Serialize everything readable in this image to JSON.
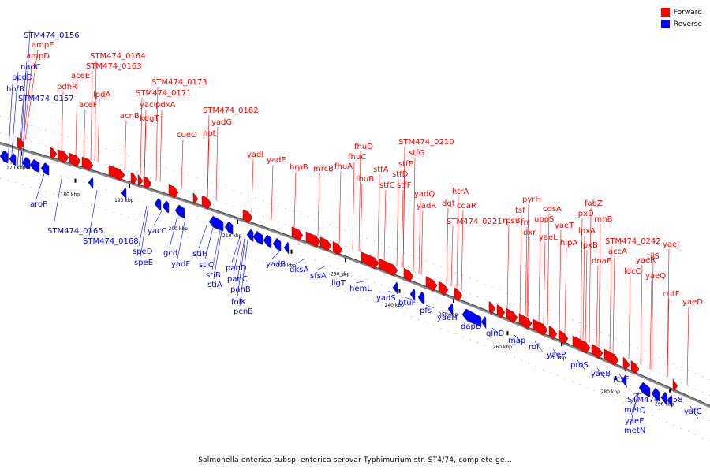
{
  "legend": {
    "forward": {
      "label": "Forward",
      "color": "#ff0000"
    },
    "reverse": {
      "label": "Reverse",
      "color": "#0000ff"
    }
  },
  "caption": "Salmonella enterica subsp. enterica serovar Typhimurium str. ST4/74, complete ge...",
  "scale_labels": [
    "170 kbp",
    "180 kbp",
    "190 kbp",
    "200 kbp",
    "210 kbp",
    "220 kbp",
    "230 kbp",
    "240 kbp",
    "250 kbp",
    "260 kbp",
    "270 kbp",
    "280 kbp",
    "290 kbp"
  ],
  "forward_genes": [
    "STM474_0156",
    "ampE",
    "ampD",
    "nadC",
    "ppdD",
    "hofB",
    "STM474_0157",
    "aceE",
    "pdhR",
    "aceF",
    "STM474_0164",
    "STM474_0163",
    "lpdA",
    "acnB",
    "STM474_0173",
    "STM474_0171",
    "yacI",
    "pdxA",
    "kdgT",
    "STM474_0182",
    "yadG",
    "hpt",
    "cueO",
    "yadI",
    "yadE",
    "hrpB",
    "mrcB",
    "fhuA",
    "fhuD",
    "fhuC",
    "fhuB",
    "STM474_0210",
    "stfG",
    "stfE",
    "stfA",
    "stfD",
    "stfC",
    "stfF",
    "yadQ",
    "yadR",
    "htrA",
    "dgt",
    "cdaR",
    "STM474_0221",
    "pyrH",
    "tsf",
    "rpsB",
    "frr",
    "dxr",
    "cdsA",
    "uppS",
    "yaeL",
    "yaeT",
    "hlpA",
    "fabZ",
    "lpxD",
    "rnhB",
    "lpxA",
    "lpxB",
    "dnaE",
    "STM474_0242",
    "accA",
    "yaeJ",
    "tilS",
    "yaeR",
    "ldcC",
    "yaeQ",
    "cutF",
    "yaeD"
  ],
  "reverse_genes": [
    "aroP",
    "STM474_0165",
    "STM474_0168",
    "yacC",
    "speD",
    "speE",
    "gcd",
    "yadF",
    "stiH",
    "stiC",
    "stiB",
    "stiA",
    "panD",
    "panC",
    "panB",
    "folK",
    "pcnB",
    "yadB",
    "dksA",
    "sfsA",
    "ligT",
    "hemL",
    "yadS",
    "btuF",
    "pfs",
    "yaeH",
    "dapD",
    "glnD",
    "map",
    "rof",
    "yaeP",
    "proS",
    "yaeB",
    "rcsF",
    "STM474_0258",
    "metQ",
    "yaeE",
    "metN",
    "yafC"
  ]
}
